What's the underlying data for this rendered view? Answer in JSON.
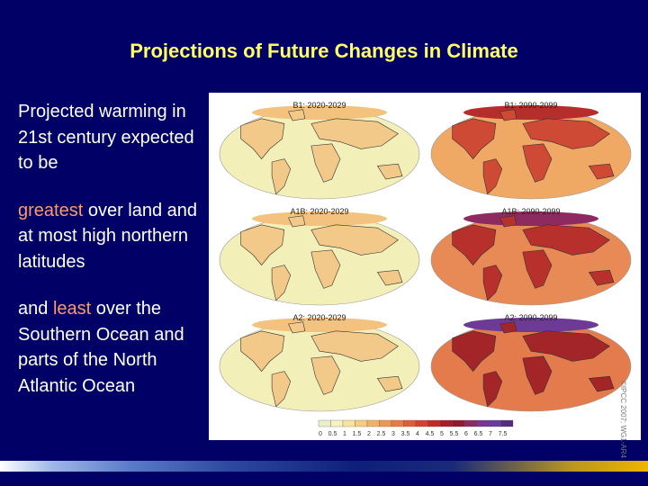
{
  "title": "Projections of Future Changes in Climate",
  "bullets": {
    "b1": "Projected warming in 21st century expected to be",
    "b2_hl": "greatest",
    "b2_rest": " over land and at most high northern latitudes",
    "b3_pre": "and ",
    "b3_hl": "least",
    "b3_rest": " over the Southern Ocean and parts of the North Atlantic Ocean"
  },
  "panels": [
    {
      "label": "B1: 2020-2029",
      "level": 1
    },
    {
      "label": "B1: 2090-2099",
      "level": 3
    },
    {
      "label": "A1B: 2020-2029",
      "level": 1
    },
    {
      "label": "A1B: 2090-2099",
      "level": 4
    },
    {
      "label": "A2: 2020-2029",
      "level": 1
    },
    {
      "label": "A2: 2090-2099",
      "level": 5
    }
  ],
  "colorbar": {
    "ticks": [
      "0",
      "0.5",
      "1",
      "1.5",
      "2",
      "2.5",
      "3",
      "3.5",
      "4",
      "4.5",
      "5",
      "5.5",
      "6",
      "6.5",
      "7",
      "7.5"
    ],
    "colors": [
      "#e9f0c9",
      "#f7f3c1",
      "#f8e3a0",
      "#f6cd7f",
      "#f2b265",
      "#ee9652",
      "#e87a45",
      "#e05c3a",
      "#d44130",
      "#c22a27",
      "#a81d25",
      "#8f1a2c",
      "#8c2a63",
      "#7b3491",
      "#6a3a9c",
      "#552b7f"
    ]
  },
  "copyright": "©IPCC 2007: WG1-AR4"
}
